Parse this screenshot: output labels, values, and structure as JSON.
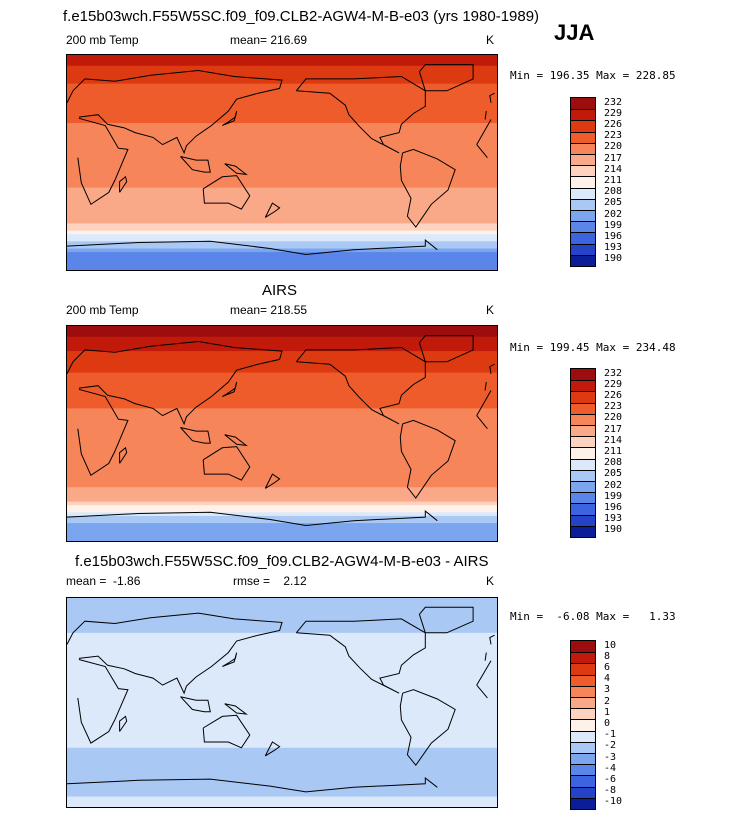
{
  "figure": {
    "title": "f.e15b03wch.F55W5SC.f09_f09.CLB2-AGW4-M-B-e03 (yrs 1980-1989)",
    "season": "JJA"
  },
  "chart_data": [
    {
      "type": "heatmap",
      "panel": "model",
      "title": "",
      "variable": "200 mb Temp",
      "units": "K",
      "mean_label": "mean= 216.69",
      "mean": 216.69,
      "minmax_label": "Min = 196.35 Max = 228.85",
      "min": 196.35,
      "max": 228.85,
      "colorbar_levels": [
        "232",
        "229",
        "226",
        "223",
        "220",
        "217",
        "214",
        "211",
        "208",
        "205",
        "202",
        "199",
        "196",
        "193",
        "190"
      ],
      "colorbar_colors": [
        "#9d0d0d",
        "#c21a0a",
        "#dd3a12",
        "#ef5c2c",
        "#f7855a",
        "#faa988",
        "#fdd2bf",
        "#fdf1e9",
        "#dbe9fb",
        "#aac8f4",
        "#7ba6ef",
        "#5a86ea",
        "#3d64e0",
        "#2543c9",
        "#0c1d99"
      ],
      "zonal_profile": [
        {
          "lat": 80,
          "value": 226
        },
        {
          "lat": 60,
          "value": 222
        },
        {
          "lat": 40,
          "value": 221
        },
        {
          "lat": 20,
          "value": 218
        },
        {
          "lat": 0,
          "value": 217
        },
        {
          "lat": -20,
          "value": 217
        },
        {
          "lat": -40,
          "value": 216
        },
        {
          "lat": -55,
          "value": 213
        },
        {
          "lat": -65,
          "value": 205
        },
        {
          "lat": -80,
          "value": 197
        }
      ]
    },
    {
      "type": "heatmap",
      "panel": "obs",
      "title": "AIRS",
      "variable": "200 mb Temp",
      "units": "K",
      "mean_label": "mean= 218.55",
      "mean": 218.55,
      "minmax_label": "Min = 199.45 Max = 234.48",
      "min": 199.45,
      "max": 234.48,
      "colorbar_levels": [
        "232",
        "229",
        "226",
        "223",
        "220",
        "217",
        "214",
        "211",
        "208",
        "205",
        "202",
        "199",
        "196",
        "193",
        "190"
      ],
      "colorbar_colors": [
        "#9d0d0d",
        "#c21a0a",
        "#dd3a12",
        "#ef5c2c",
        "#f7855a",
        "#faa988",
        "#fdd2bf",
        "#fdf1e9",
        "#dbe9fb",
        "#aac8f4",
        "#7ba6ef",
        "#5a86ea",
        "#3d64e0",
        "#2543c9",
        "#0c1d99"
      ],
      "zonal_profile": [
        {
          "lat": 80,
          "value": 229
        },
        {
          "lat": 60,
          "value": 224
        },
        {
          "lat": 40,
          "value": 222
        },
        {
          "lat": 20,
          "value": 220
        },
        {
          "lat": 0,
          "value": 219
        },
        {
          "lat": -20,
          "value": 219
        },
        {
          "lat": -40,
          "value": 218
        },
        {
          "lat": -55,
          "value": 215
        },
        {
          "lat": -65,
          "value": 208
        },
        {
          "lat": -80,
          "value": 199
        }
      ]
    },
    {
      "type": "heatmap",
      "panel": "difference",
      "title": "f.e15b03wch.F55W5SC.f09_f09.CLB2-AGW4-M-B-e03 - AIRS",
      "variable": "",
      "units": "K",
      "mean_label": "mean =  -1.86",
      "mean": -1.86,
      "rmse_label": "rmse =    2.12",
      "rmse": 2.12,
      "minmax_label": "Min =  -6.08 Max =   1.33",
      "min": -6.08,
      "max": 1.33,
      "colorbar_levels": [
        "10",
        "8",
        "6",
        "4",
        "3",
        "2",
        "1",
        "0",
        "-1",
        "-2",
        "-3",
        "-4",
        "-6",
        "-8",
        "-10"
      ],
      "colorbar_colors": [
        "#9d0d0d",
        "#c21a0a",
        "#dd3a12",
        "#ef5c2c",
        "#f7855a",
        "#faa988",
        "#fdd2bf",
        "#fdf1e9",
        "#dbe9fb",
        "#aac8f4",
        "#7ba6ef",
        "#5a86ea",
        "#3d64e0",
        "#2543c9",
        "#0c1d99"
      ],
      "zonal_profile": [
        {
          "lat": 80,
          "value": -2.5
        },
        {
          "lat": 60,
          "value": -2
        },
        {
          "lat": 40,
          "value": -1.5
        },
        {
          "lat": 20,
          "value": -1.5
        },
        {
          "lat": 0,
          "value": -1.5
        },
        {
          "lat": -20,
          "value": -1.5
        },
        {
          "lat": -40,
          "value": -2
        },
        {
          "lat": -55,
          "value": -2.5
        },
        {
          "lat": -65,
          "value": -3
        },
        {
          "lat": -80,
          "value": -2
        }
      ]
    }
  ]
}
